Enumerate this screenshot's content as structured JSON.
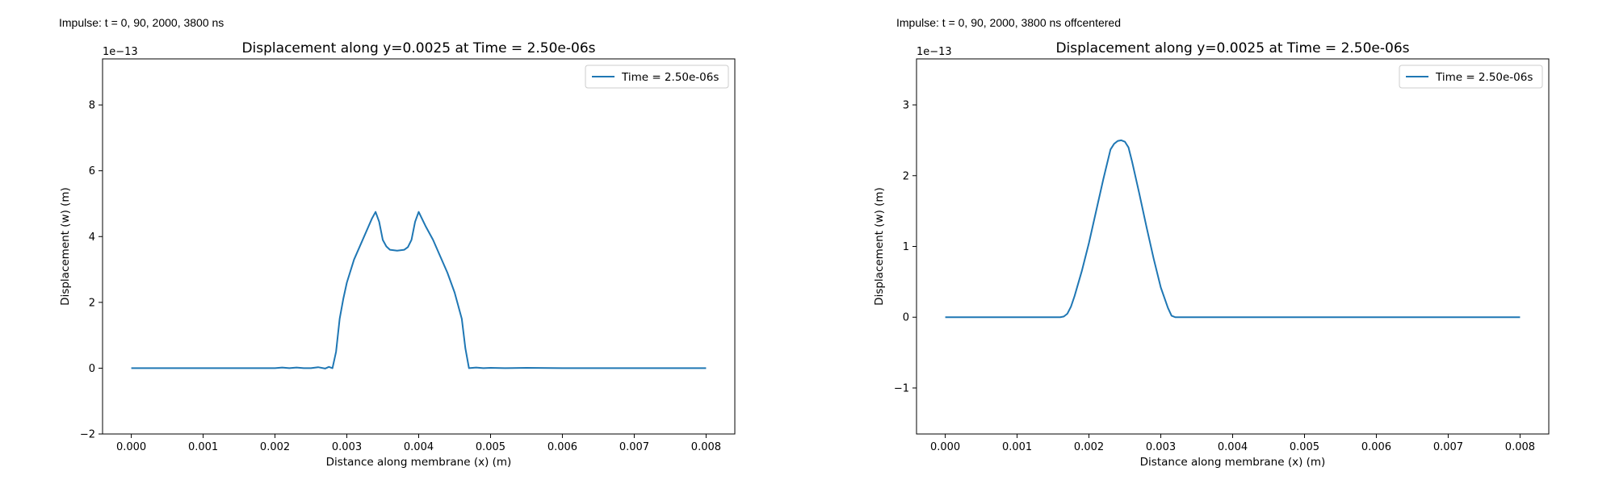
{
  "figure": {
    "captions": [
      "Impulse: t = 0, 90, 2000, 3800 ns",
      "Impulse: t = 0, 90, 2000, 3800 ns offcentered"
    ]
  },
  "chart_data": [
    {
      "type": "line",
      "title": "Displacement along y=0.0025 at Time = 2.50e-06s",
      "xlabel": "Distance along membrane (x) (m)",
      "ylabel": "Displacement (w) (m)",
      "y_offset_text": "1e−13",
      "y_scale": 1e-13,
      "xlim": [
        -0.0004,
        0.0084
      ],
      "ylim": [
        -2.0,
        9.4
      ],
      "xticks": [
        0.0,
        0.001,
        0.002,
        0.003,
        0.004,
        0.005,
        0.006,
        0.007,
        0.008
      ],
      "xtick_labels": [
        "0.000",
        "0.001",
        "0.002",
        "0.003",
        "0.004",
        "0.005",
        "0.006",
        "0.007",
        "0.008"
      ],
      "yticks": [
        -2,
        0,
        2,
        4,
        6,
        8
      ],
      "ytick_labels": [
        "−2",
        "0",
        "2",
        "4",
        "6",
        "8"
      ],
      "grid": false,
      "legend_position": "upper right",
      "color": "#1f77b4",
      "series": [
        {
          "name": "Time = 2.50e-06s",
          "points": [
            [
              0.0,
              0.0
            ],
            [
              0.001,
              0.0
            ],
            [
              0.002,
              0.0
            ],
            [
              0.0021,
              0.02
            ],
            [
              0.0022,
              0.0
            ],
            [
              0.0023,
              0.02
            ],
            [
              0.0024,
              0.0
            ],
            [
              0.0025,
              0.0
            ],
            [
              0.0026,
              0.03
            ],
            [
              0.0027,
              -0.01
            ],
            [
              0.00275,
              0.04
            ],
            [
              0.0028,
              0.0
            ],
            [
              0.00285,
              0.5
            ],
            [
              0.0029,
              1.5
            ],
            [
              0.00295,
              2.1
            ],
            [
              0.003,
              2.6
            ],
            [
              0.0031,
              3.3
            ],
            [
              0.0032,
              3.8
            ],
            [
              0.0033,
              4.3
            ],
            [
              0.00335,
              4.55
            ],
            [
              0.0034,
              4.75
            ],
            [
              0.00345,
              4.45
            ],
            [
              0.0035,
              3.9
            ],
            [
              0.00355,
              3.7
            ],
            [
              0.0036,
              3.6
            ],
            [
              0.0037,
              3.57
            ],
            [
              0.0038,
              3.6
            ],
            [
              0.00385,
              3.68
            ],
            [
              0.0039,
              3.9
            ],
            [
              0.00395,
              4.45
            ],
            [
              0.004,
              4.75
            ],
            [
              0.0041,
              4.3
            ],
            [
              0.0042,
              3.9
            ],
            [
              0.0043,
              3.4
            ],
            [
              0.0044,
              2.9
            ],
            [
              0.0045,
              2.3
            ],
            [
              0.00455,
              1.9
            ],
            [
              0.0046,
              1.5
            ],
            [
              0.00465,
              0.6
            ],
            [
              0.0047,
              0.0
            ],
            [
              0.0048,
              0.02
            ],
            [
              0.0049,
              0.0
            ],
            [
              0.005,
              0.01
            ],
            [
              0.0052,
              0.0
            ],
            [
              0.0055,
              0.01
            ],
            [
              0.006,
              0.0
            ],
            [
              0.008,
              0.0
            ]
          ]
        }
      ]
    },
    {
      "type": "line",
      "title": "Displacement along y=0.0025 at Time = 2.50e-06s",
      "xlabel": "Distance along membrane (x) (m)",
      "ylabel": "Displacement (w) (m)",
      "y_offset_text": "1e−13",
      "y_scale": 1e-13,
      "xlim": [
        -0.0004,
        0.0084
      ],
      "ylim": [
        -1.65,
        3.65
      ],
      "xticks": [
        0.0,
        0.001,
        0.002,
        0.003,
        0.004,
        0.005,
        0.006,
        0.007,
        0.008
      ],
      "xtick_labels": [
        "0.000",
        "0.001",
        "0.002",
        "0.003",
        "0.004",
        "0.005",
        "0.006",
        "0.007",
        "0.008"
      ],
      "yticks": [
        -1,
        0,
        1,
        2,
        3
      ],
      "ytick_labels": [
        "−1",
        "0",
        "1",
        "2",
        "3"
      ],
      "grid": false,
      "legend_position": "upper right",
      "color": "#1f77b4",
      "series": [
        {
          "name": "Time = 2.50e-06s",
          "points": [
            [
              0.0,
              0.0
            ],
            [
              0.0016,
              0.0
            ],
            [
              0.00165,
              0.01
            ],
            [
              0.0017,
              0.05
            ],
            [
              0.00175,
              0.15
            ],
            [
              0.0018,
              0.3
            ],
            [
              0.0019,
              0.65
            ],
            [
              0.002,
              1.05
            ],
            [
              0.0021,
              1.5
            ],
            [
              0.0022,
              1.95
            ],
            [
              0.0023,
              2.37
            ],
            [
              0.00235,
              2.45
            ],
            [
              0.0024,
              2.49
            ],
            [
              0.00245,
              2.5
            ],
            [
              0.0025,
              2.48
            ],
            [
              0.00255,
              2.4
            ],
            [
              0.0026,
              2.2
            ],
            [
              0.0027,
              1.75
            ],
            [
              0.0028,
              1.28
            ],
            [
              0.0029,
              0.83
            ],
            [
              0.003,
              0.42
            ],
            [
              0.0031,
              0.13
            ],
            [
              0.00315,
              0.02
            ],
            [
              0.0032,
              0.0
            ],
            [
              0.0035,
              0.0
            ],
            [
              0.008,
              0.0
            ]
          ]
        }
      ]
    }
  ]
}
